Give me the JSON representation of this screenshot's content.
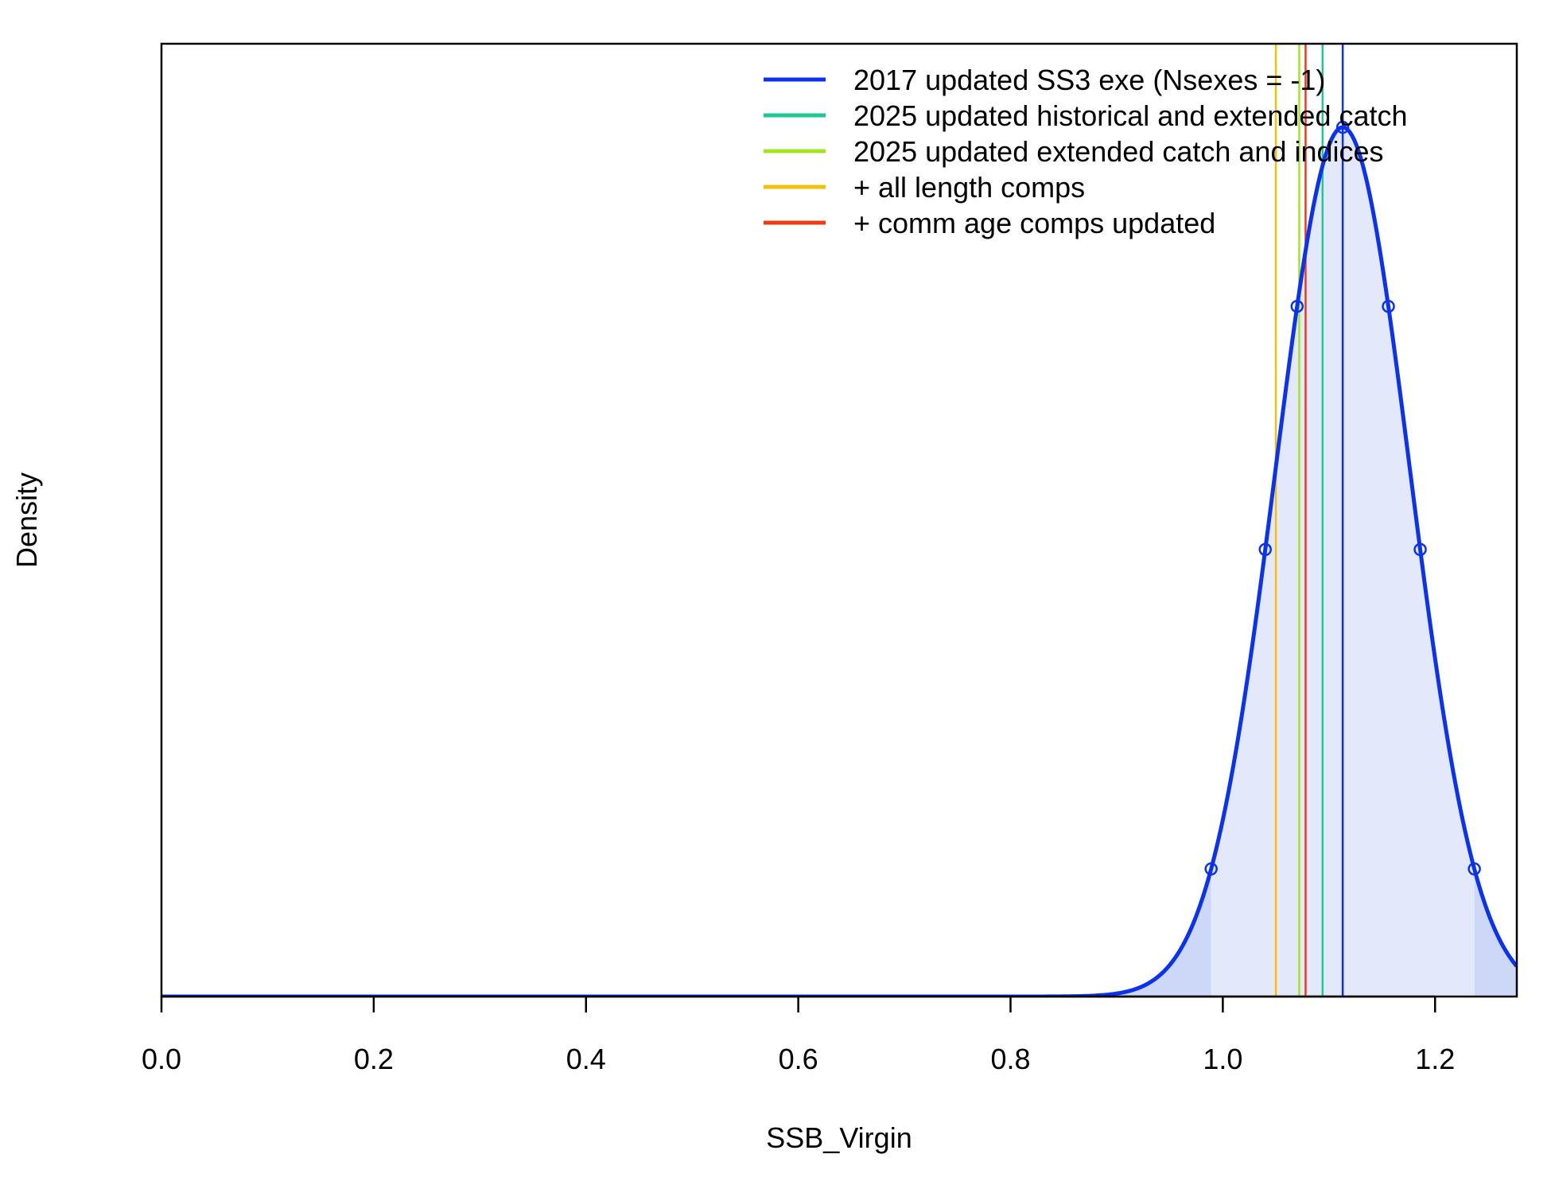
{
  "chart_data": {
    "type": "line",
    "xlabel": "SSB_Virgin",
    "ylabel": "Density",
    "xlim": [
      0,
      1.277
    ],
    "x_ticks": [
      0.0,
      0.2,
      0.4,
      0.6,
      0.8,
      1.0,
      1.2
    ],
    "x_tick_labels": [
      "0.0",
      "0.2",
      "0.4",
      "0.6",
      "0.8",
      "1.0",
      "1.2"
    ],
    "y_ticks": [],
    "grid": false,
    "legend_position": "top-right",
    "distribution": {
      "series_name": "2017 updated SS3 exe (Nsexes = -1)",
      "color": "#0B32F0",
      "fill_color": "#E3E9FB",
      "tail_fill_color": "#CDD7F8",
      "mean": 1.113,
      "sd": 0.0633,
      "interval_95": [
        0.989,
        1.237
      ],
      "marker_x": [
        0.989,
        1.04,
        1.07,
        1.113,
        1.156,
        1.186,
        1.237
      ]
    },
    "series": [
      {
        "name": "2017 updated SS3 exe (Nsexes = -1)",
        "color": "#0B32F0",
        "estimate": 1.113
      },
      {
        "name": "2025 updated historical and extended catch",
        "color": "#1FC98E",
        "estimate": 1.094
      },
      {
        "name": "2025 updated extended catch and indices",
        "color": "#A4E61E",
        "estimate": 1.072
      },
      {
        "name": "+ all length comps",
        "color": "#F2C109",
        "estimate": 1.05
      },
      {
        "name": "+ comm age comps updated",
        "color": "#EE3A17",
        "estimate": 1.078
      }
    ]
  }
}
